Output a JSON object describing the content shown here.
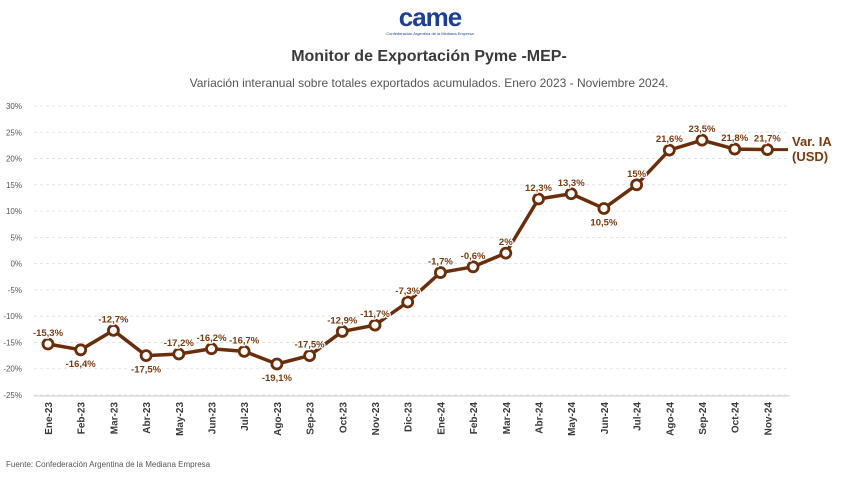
{
  "logo": {
    "wordmark": "came",
    "tagline": "Confederación Argentina de la Mediana Empresa"
  },
  "source": "Fuente: Confederación Argentina de la Mediana Empresa",
  "colors": {
    "line": "#6b2e0a",
    "label": "#7a3a10",
    "grid": "#dddddd",
    "logo_blue": "#1d3f94",
    "logo_light": "#1e88d8"
  },
  "chart_data": {
    "type": "line",
    "title": "Monitor de Exportación Pyme -MEP-",
    "subtitle": "Variación interanual sobre totales exportados acumulados. Enero 2023 - Noviembre 2024.",
    "categories": [
      "Ene-23",
      "Feb-23",
      "Mar-23",
      "Abr-23",
      "May-23",
      "Jun-23",
      "Jul-23",
      "Ago-23",
      "Sep-23",
      "Oct-23",
      "Nov-23",
      "Dic-23",
      "Ene-24",
      "Feb-24",
      "Mar-24",
      "Abr-24",
      "May-24",
      "Jun-24",
      "Jul-24",
      "Ago-24",
      "Sep-24",
      "Oct-24",
      "Nov-24"
    ],
    "series": [
      {
        "name": "Var. IA (USD)",
        "values": [
          -15.3,
          -16.4,
          -12.7,
          -17.5,
          -17.2,
          -16.2,
          -16.7,
          -19.1,
          -17.5,
          -12.9,
          -11.7,
          -7.3,
          -1.7,
          -0.6,
          2,
          12.3,
          13.3,
          10.5,
          15,
          21.6,
          23.5,
          21.8,
          21.7
        ],
        "data_labels": [
          "-15,3%",
          "-16,4%",
          "-12,7%",
          "-17,5%",
          "-17,2%",
          "-16,2%",
          "-16,7%",
          "-19,1%",
          "-17,5%",
          "-12,9%",
          "-11,7%",
          "-7,3%",
          "-1,7%",
          "-0,6%",
          "2%",
          "12,3%",
          "13,3%",
          "10,5%",
          "15%",
          "21,6%",
          "23,5%",
          "21,8%",
          "21,7%"
        ]
      }
    ],
    "series_label_lines": [
      "Var. IA",
      "(USD)"
    ],
    "yticks": [
      30,
      25,
      20,
      15,
      10,
      5,
      0,
      -5,
      -10,
      -15,
      -20,
      -25
    ],
    "ytick_labels": [
      "30%",
      "25%",
      "20%",
      "15%",
      "10%",
      "5%",
      "0%",
      "-5%",
      "-10%",
      "-15%",
      "-20%",
      "-25%"
    ],
    "ylim": [
      -25,
      30
    ],
    "grid": true,
    "legend": "right-end label"
  }
}
